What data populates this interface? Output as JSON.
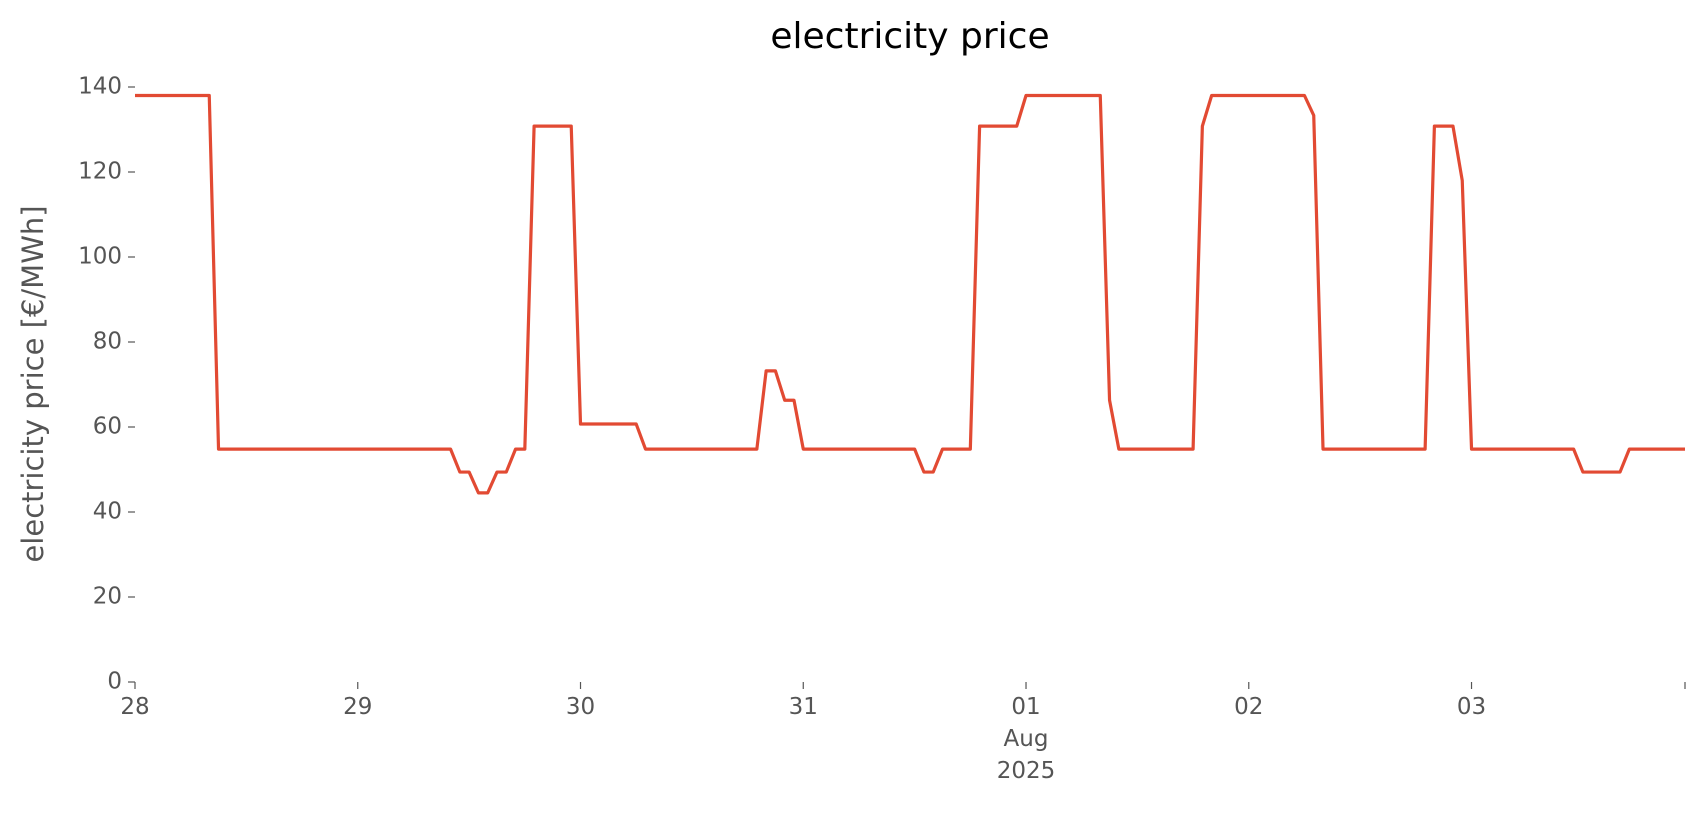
{
  "chart_data": {
    "type": "line",
    "title": "electricity price",
    "ylabel": "electricity price [€/MWh]",
    "xlabel_lines": [
      "Aug",
      "2025"
    ],
    "x": [
      0,
      8,
      9,
      34,
      35,
      36,
      37,
      38,
      39,
      40,
      41,
      42,
      43,
      47,
      48,
      54,
      55,
      67,
      68,
      69,
      70,
      71,
      72,
      84,
      85,
      86,
      87,
      90,
      91,
      95,
      96,
      104,
      105,
      106,
      114,
      115,
      116,
      126,
      127,
      128,
      139,
      140,
      142,
      143,
      144,
      155,
      156,
      160,
      161,
      167
    ],
    "series": [
      {
        "name": "electricity price",
        "color": "#e24a33",
        "values": [
          138,
          138,
          54.8,
          54.8,
          49.4,
          49.4,
          44.5,
          44.5,
          49.4,
          49.4,
          54.8,
          54.8,
          130.8,
          130.8,
          60.7,
          60.7,
          54.8,
          54.8,
          73.2,
          73.2,
          66.3,
          66.3,
          54.8,
          54.8,
          49.4,
          49.4,
          54.8,
          54.8,
          130.8,
          130.8,
          138,
          138,
          66.3,
          54.8,
          54.8,
          130.8,
          138,
          138,
          133.3,
          54.8,
          54.8,
          130.8,
          130.8,
          118,
          54.8,
          54.8,
          49.4,
          49.4,
          54.8,
          54.8
        ]
      }
    ],
    "xlim": [
      0,
      167
    ],
    "xticks": [
      {
        "value": 0,
        "label": "28"
      },
      {
        "value": 24,
        "label": "29"
      },
      {
        "value": 48,
        "label": "30"
      },
      {
        "value": 72,
        "label": "31"
      },
      {
        "value": 96,
        "label": "01"
      },
      {
        "value": 120,
        "label": "02"
      },
      {
        "value": 144,
        "label": "03"
      },
      {
        "value": 167,
        "label": null
      }
    ],
    "ylim": [
      0,
      140
    ],
    "yticks": [
      0,
      20,
      40,
      60,
      80,
      100,
      120,
      140
    ],
    "grid": false
  }
}
